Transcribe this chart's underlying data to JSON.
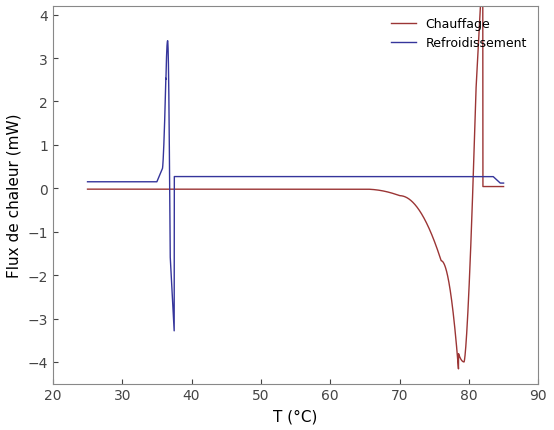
{
  "title": "",
  "xlabel": "T (°C)",
  "ylabel": "Flux de chaleur (mW)",
  "xlim": [
    20,
    90
  ],
  "ylim": [
    -4.5,
    4.2
  ],
  "xticks": [
    20,
    30,
    40,
    50,
    60,
    70,
    80,
    90
  ],
  "yticks": [
    -4,
    -3,
    -2,
    -1,
    0,
    1,
    2,
    3,
    4
  ],
  "legend_labels": [
    "Chauffage",
    "Refroidissement"
  ],
  "chauffage_color": "#9b3535",
  "refroidissement_color": "#35359b",
  "background_color": "#ffffff",
  "linewidth": 1.0
}
